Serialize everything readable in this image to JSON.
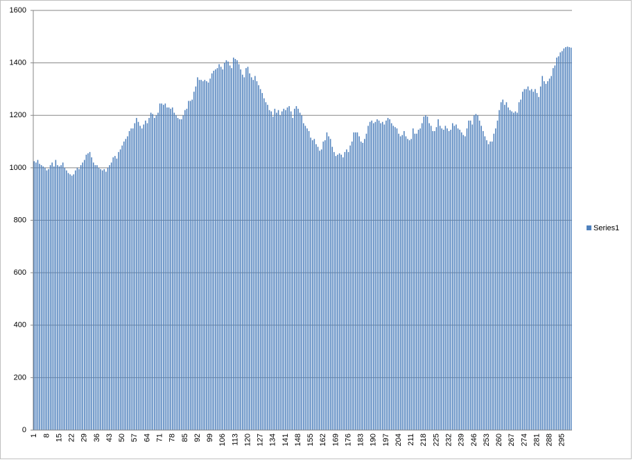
{
  "chart_data": {
    "type": "bar",
    "categories": [
      1,
      null,
      null,
      null,
      null,
      null,
      null,
      8,
      null,
      null,
      null,
      null,
      null,
      null,
      15,
      null,
      null,
      null,
      null,
      null,
      null,
      22,
      null,
      null,
      null,
      null,
      null,
      null,
      29,
      null,
      null,
      null,
      null,
      null,
      null,
      36,
      null,
      null,
      null,
      null,
      null,
      null,
      43,
      null,
      null,
      null,
      null,
      null,
      null,
      50,
      null,
      null,
      null,
      null,
      null,
      null,
      57,
      null,
      null,
      null,
      null,
      null,
      null,
      64,
      null,
      null,
      null,
      null,
      null,
      null,
      71,
      null,
      null,
      null,
      null,
      null,
      null,
      78,
      null,
      null,
      null,
      null,
      null,
      null,
      85,
      null,
      null,
      null,
      null,
      null,
      null,
      92,
      null,
      null,
      null,
      null,
      null,
      null,
      99,
      null,
      null,
      null,
      null,
      null,
      null,
      106,
      null,
      null,
      null,
      null,
      null,
      null,
      113,
      null,
      null,
      null,
      null,
      null,
      null,
      120,
      null,
      null,
      null,
      null,
      null,
      null,
      127,
      null,
      null,
      null,
      null,
      null,
      null,
      134,
      null,
      null,
      null,
      null,
      null,
      null,
      141,
      null,
      null,
      null,
      null,
      null,
      null,
      148,
      null,
      null,
      null,
      null,
      null,
      null,
      155,
      null,
      null,
      null,
      null,
      null,
      null,
      162,
      null,
      null,
      null,
      null,
      null,
      null,
      169,
      null,
      null,
      null,
      null,
      null,
      null,
      176,
      null,
      null,
      null,
      null,
      null,
      null,
      183,
      null,
      null,
      null,
      null,
      null,
      null,
      190,
      null,
      null,
      null,
      null,
      null,
      null,
      197,
      null,
      null,
      null,
      null,
      null,
      null,
      204,
      null,
      null,
      null,
      null,
      null,
      null,
      211,
      null,
      null,
      null,
      null,
      null,
      null,
      218,
      null,
      null,
      null,
      null,
      null,
      null,
      225,
      null,
      null,
      null,
      null,
      null,
      null,
      232,
      null,
      null,
      null,
      null,
      null,
      null,
      239,
      null,
      null,
      null,
      null,
      null,
      null,
      246,
      null,
      null,
      null,
      null,
      null,
      null,
      253,
      null,
      null,
      null,
      null,
      null,
      null,
      260,
      null,
      null,
      null,
      null,
      null,
      null,
      267,
      null,
      null,
      null,
      null,
      null,
      null,
      274,
      null,
      null,
      null,
      null,
      null,
      null,
      281,
      null,
      null,
      null,
      null,
      null,
      null,
      288,
      null,
      null,
      null,
      null,
      null,
      null,
      295,
      null,
      null,
      null,
      null,
      null
    ],
    "series": [
      {
        "name": "Series1",
        "color": "#4f81bd",
        "values": [
          1025,
          1020,
          1030,
          1015,
          1010,
          1005,
          1000,
          990,
          995,
          1010,
          1020,
          1005,
          1030,
          1010,
          1005,
          1010,
          1020,
          1000,
          990,
          980,
          975,
          970,
          975,
          990,
          1000,
          995,
          1010,
          1020,
          1030,
          1050,
          1055,
          1060,
          1040,
          1020,
          1010,
          1010,
          1000,
          995,
          990,
          995,
          985,
          1000,
          1010,
          1020,
          1040,
          1045,
          1035,
          1060,
          1070,
          1085,
          1100,
          1110,
          1120,
          1140,
          1150,
          1150,
          1170,
          1190,
          1175,
          1160,
          1150,
          1165,
          1180,
          1170,
          1190,
          1210,
          1205,
          1190,
          1200,
          1210,
          1245,
          1245,
          1240,
          1245,
          1230,
          1230,
          1225,
          1230,
          1210,
          1200,
          1190,
          1185,
          1185,
          1200,
          1220,
          1225,
          1255,
          1255,
          1260,
          1290,
          1310,
          1345,
          1335,
          1335,
          1330,
          1335,
          1330,
          1325,
          1340,
          1360,
          1370,
          1375,
          1380,
          1395,
          1385,
          1375,
          1400,
          1410,
          1405,
          1390,
          1380,
          1420,
          1415,
          1410,
          1395,
          1375,
          1355,
          1345,
          1380,
          1385,
          1360,
          1345,
          1335,
          1350,
          1330,
          1315,
          1300,
          1285,
          1265,
          1250,
          1240,
          1220,
          1215,
          1195,
          1225,
          1210,
          1220,
          1200,
          1215,
          1225,
          1220,
          1230,
          1235,
          1215,
          1190,
          1225,
          1235,
          1225,
          1210,
          1200,
          1170,
          1160,
          1150,
          1140,
          1115,
          1105,
          1110,
          1090,
          1080,
          1065,
          1070,
          1100,
          1105,
          1135,
          1120,
          1110,
          1080,
          1060,
          1045,
          1050,
          1055,
          1050,
          1040,
          1060,
          1070,
          1060,
          1085,
          1100,
          1135,
          1135,
          1135,
          1120,
          1100,
          1095,
          1110,
          1130,
          1160,
          1175,
          1180,
          1170,
          1175,
          1185,
          1180,
          1170,
          1175,
          1165,
          1180,
          1190,
          1185,
          1170,
          1160,
          1155,
          1150,
          1130,
          1120,
          1125,
          1140,
          1120,
          1110,
          1105,
          1110,
          1150,
          1130,
          1130,
          1145,
          1150,
          1170,
          1195,
          1200,
          1195,
          1170,
          1160,
          1140,
          1140,
          1155,
          1185,
          1160,
          1150,
          1145,
          1160,
          1150,
          1140,
          1145,
          1170,
          1160,
          1165,
          1150,
          1145,
          1135,
          1125,
          1120,
          1150,
          1180,
          1180,
          1165,
          1200,
          1205,
          1200,
          1180,
          1160,
          1140,
          1120,
          1105,
          1090,
          1100,
          1100,
          1130,
          1150,
          1180,
          1220,
          1250,
          1260,
          1240,
          1250,
          1230,
          1220,
          1215,
          1210,
          1215,
          1210,
          1250,
          1260,
          1290,
          1300,
          1300,
          1310,
          1295,
          1300,
          1290,
          1300,
          1285,
          1270,
          1310,
          1350,
          1330,
          1320,
          1330,
          1340,
          1350,
          1380,
          1390,
          1420,
          1425,
          1440,
          1445,
          1455,
          1460,
          1462,
          1460,
          1458
        ]
      }
    ],
    "ylim": [
      0,
      1600
    ],
    "yticks": [
      0,
      200,
      400,
      600,
      800,
      1000,
      1200,
      1400,
      1600
    ],
    "grid": true,
    "legend": "right"
  }
}
